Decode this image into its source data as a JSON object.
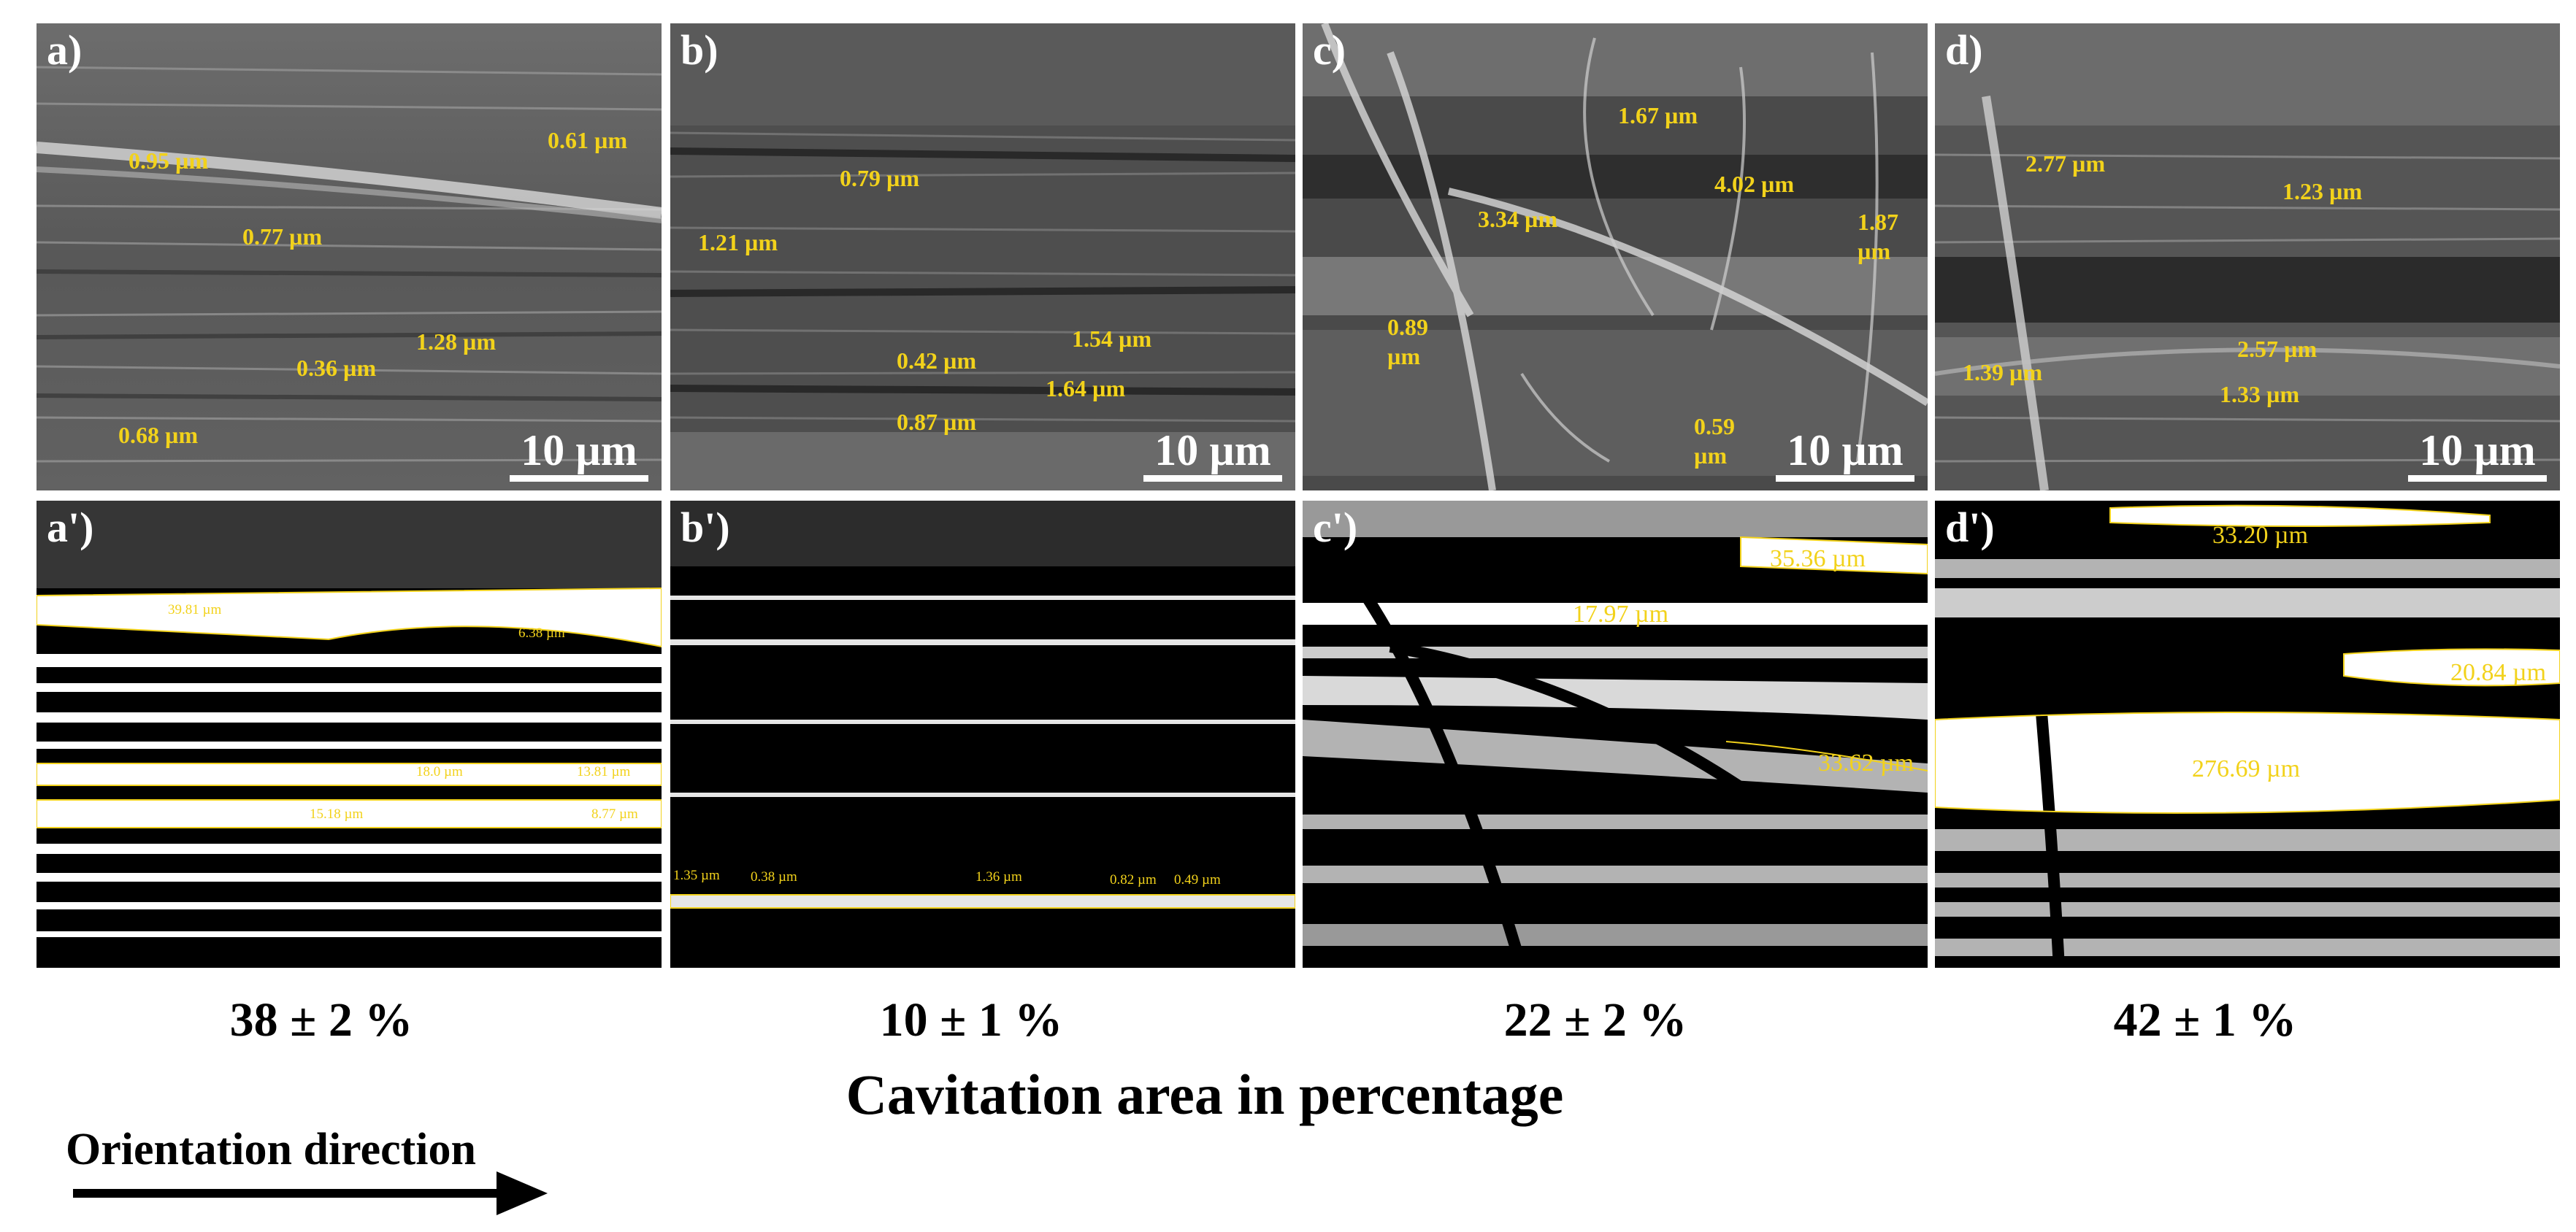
{
  "panels_top": [
    {
      "label": "a)",
      "scale": "10 µm",
      "measurements": [
        "0.61 µm",
        "0.95 µm",
        "0.77 µm",
        "1.28 µm",
        "0.36 µm",
        "0.68 µm"
      ]
    },
    {
      "label": "b)",
      "scale": "10 µm",
      "measurements": [
        "0.79 µm",
        "1.21 µm",
        "1.54 µm",
        "0.42 µm",
        "1.64 µm",
        "0.87 µm"
      ]
    },
    {
      "label": "c)",
      "scale": "10 µm",
      "measurements": [
        "1.67 µm",
        "4.02 µm",
        "3.34 µm",
        "1.87",
        "µm",
        "0.89",
        "µm",
        "0.59",
        "µm"
      ]
    },
    {
      "label": "d)",
      "scale": "10 µm",
      "measurements": [
        "2.77 µm",
        "1.23 µm",
        "2.57 µm",
        "1.39 µm",
        "1.33 µm"
      ]
    }
  ],
  "panels_bottom": [
    {
      "label": "a')",
      "measurements": [
        "39.81 µm",
        "6.38 µm",
        "18.0 µm",
        "13.81 µm",
        "15.18 µm",
        "8.77 µm"
      ]
    },
    {
      "label": "b')",
      "measurements": [
        "1.35 µm",
        "0.38 µm",
        "1.36 µm",
        "0.82 µm",
        "0.49 µm"
      ]
    },
    {
      "label": "c')",
      "measurements": [
        "35.36 µm",
        "17.97 µm",
        "33.62 µm"
      ]
    },
    {
      "label": "d')",
      "measurements": [
        "33.20 µm",
        "20.84 µm",
        "276.69 µm"
      ]
    }
  ],
  "percentages": [
    "38 ± 2 %",
    "10 ± 1 %",
    "22 ± 2 %",
    "42 ± 1 %"
  ],
  "caption": "Cavitation area in percentage",
  "orientation_label": "Orientation direction",
  "colors": {
    "measurement": "#f2d21b",
    "sem_background": "#5a5a5a",
    "binary_background": "#000000"
  }
}
